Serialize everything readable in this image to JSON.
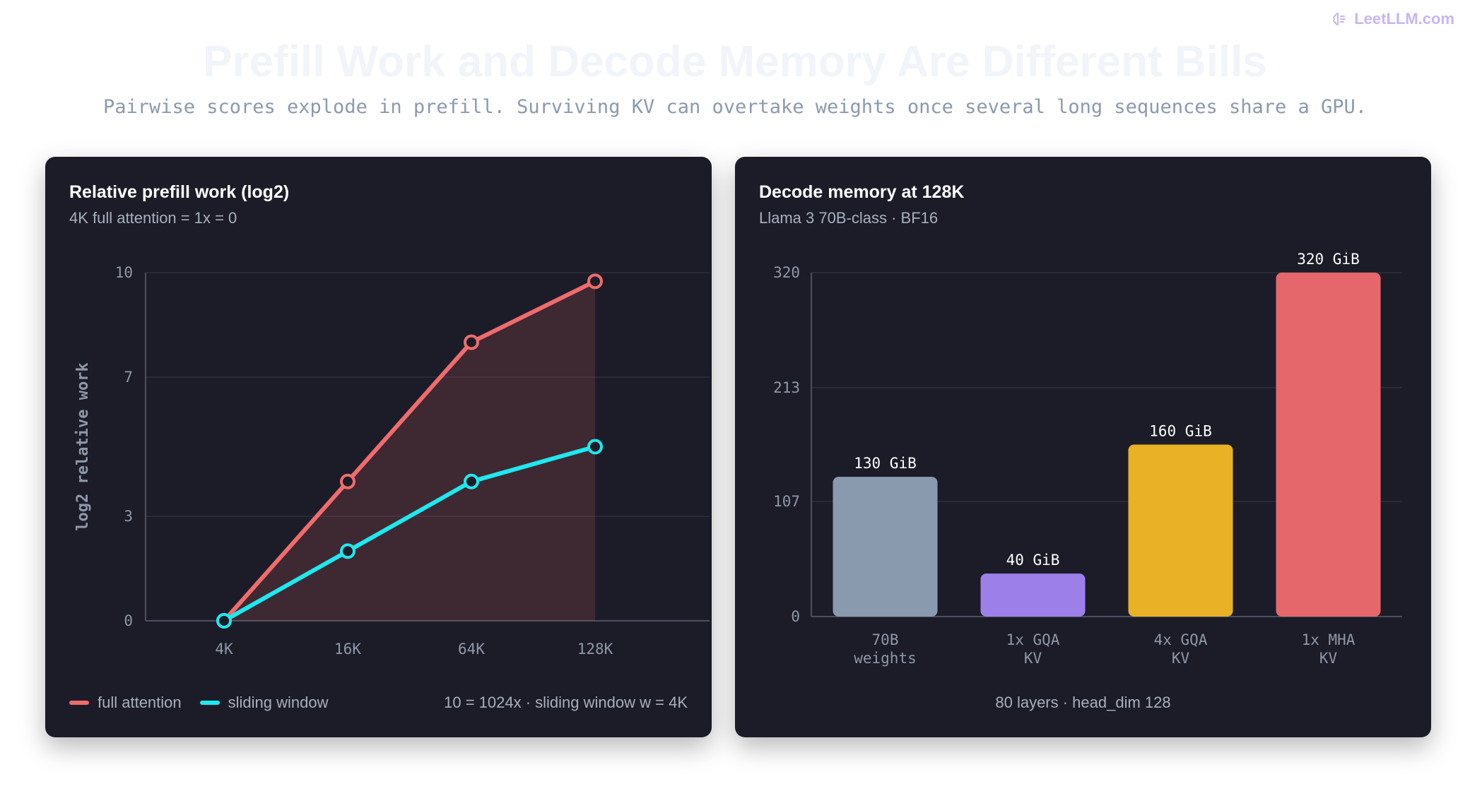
{
  "brand": {
    "name": "LeetLLM.com",
    "icon": "brain-icon"
  },
  "title": "Prefill Work and Decode Memory Are Different Bills",
  "subtitle": "Pairwise scores explode in prefill. Surviving KV can overtake weights once several long sequences share a GPU.",
  "left_panel": {
    "title": "Relative prefill work (log2)",
    "subtitle": "4K full attention = 1x = 0",
    "note": "10 = 1024x · sliding window w = 4K"
  },
  "right_panel": {
    "title": "Decode memory at 128K",
    "subtitle": "Llama 3 70B-class · BF16",
    "footnote": "80 layers · head_dim 128"
  },
  "chart_data": [
    {
      "type": "line",
      "title": "Relative prefill work (log2)",
      "ylabel": "log2 relative work",
      "categories": [
        "4K",
        "16K",
        "64K",
        "128K"
      ],
      "yticks": [
        0,
        3,
        7,
        10
      ],
      "ylim": [
        0,
        10
      ],
      "grid": true,
      "legend": "bottom-left",
      "series": [
        {
          "name": "full attention",
          "color": "#f06c6c",
          "values": [
            0,
            4,
            8,
            9.75
          ],
          "fill": true
        },
        {
          "name": "sliding window",
          "color": "#1de9ef",
          "values": [
            0,
            2,
            4,
            5
          ]
        }
      ]
    },
    {
      "type": "bar",
      "title": "Decode memory at 128K",
      "categories": [
        [
          "70B",
          "weights"
        ],
        [
          "1x GQA",
          "KV"
        ],
        [
          "4x GQA",
          "KV"
        ],
        [
          "1x MHA",
          "KV"
        ]
      ],
      "values": [
        130,
        40,
        160,
        320
      ],
      "value_labels": [
        "130 GiB",
        "40 GiB",
        "160 GiB",
        "320 GiB"
      ],
      "colors": [
        "#8a9aae",
        "#9d7fea",
        "#e9b126",
        "#e5676b"
      ],
      "yticks": [
        0,
        107,
        213,
        320
      ],
      "ylim": [
        0,
        320
      ],
      "grid": true
    }
  ]
}
